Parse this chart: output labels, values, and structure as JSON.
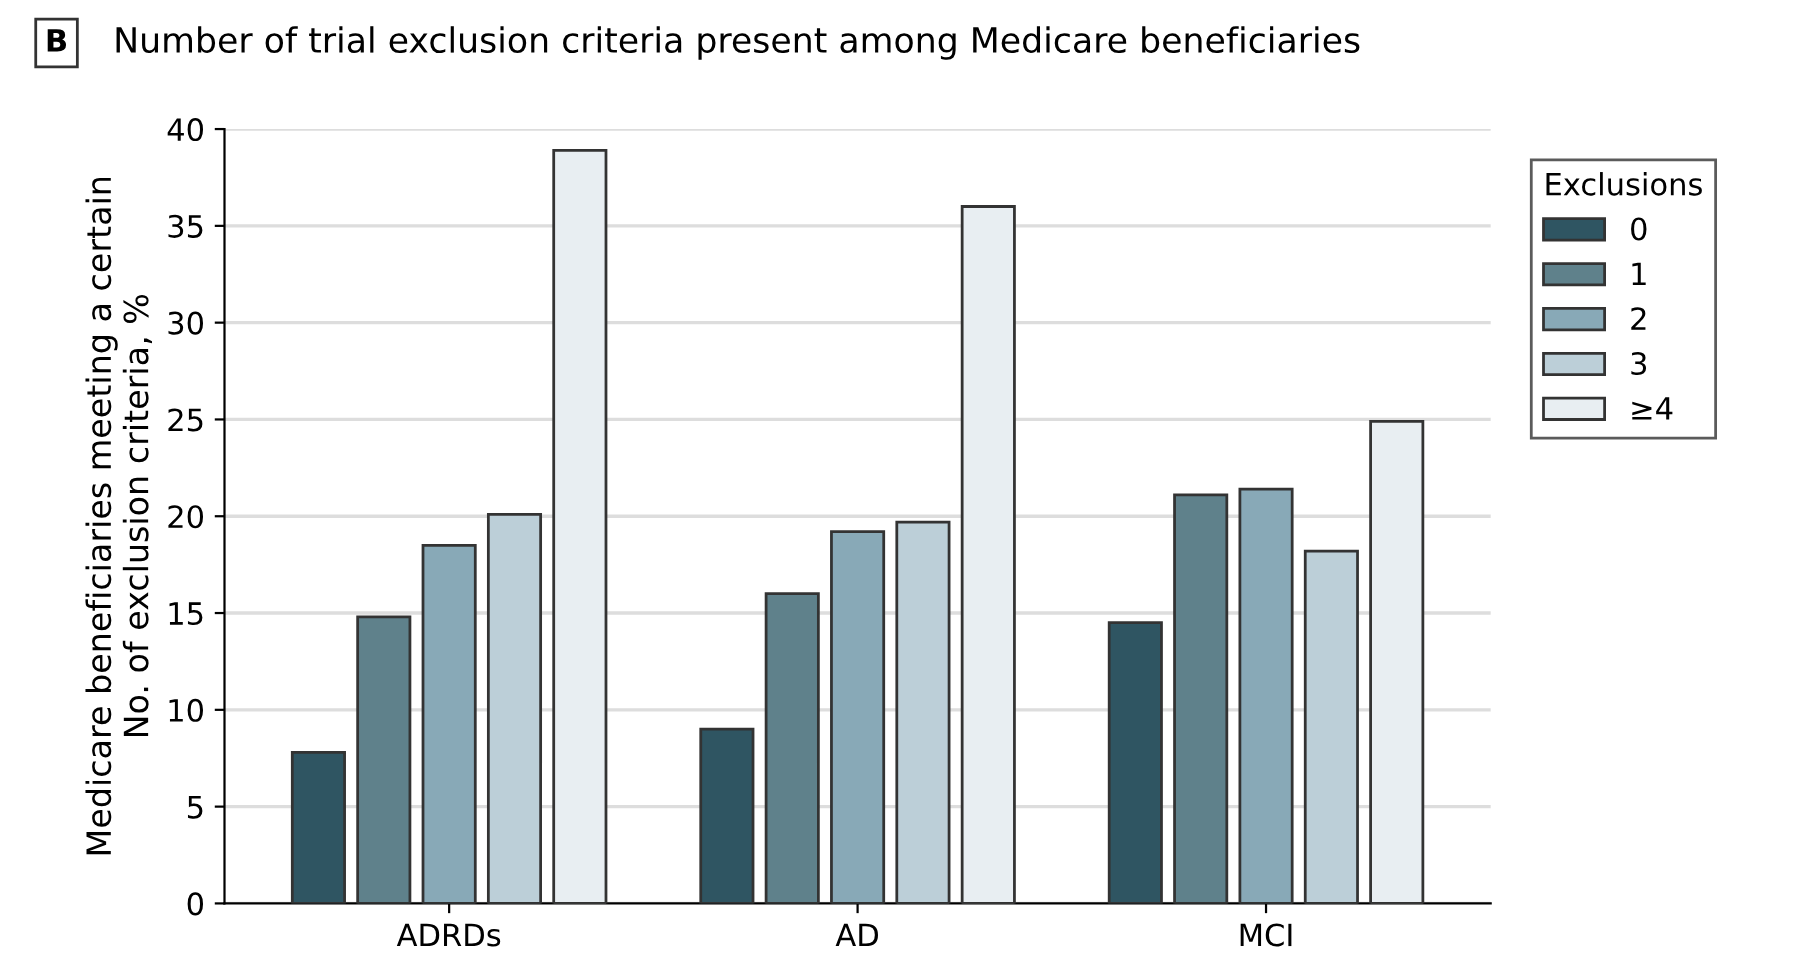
{
  "chart_data": {
    "type": "bar",
    "title": "Number of trial exclusion criteria present among Medicare beneficiaries",
    "annotations": [
      "B"
    ],
    "ylabel": "Medicare beneficiaries meeting a certain\nNo. of exclusion criteria, %",
    "legend_title": "Exclusions",
    "categories": [
      "ADRDs",
      "AD",
      "MCI"
    ],
    "series": [
      {
        "name": "0",
        "color": "#2f5562",
        "values": [
          7.8,
          9.0,
          14.5
        ]
      },
      {
        "name": "1",
        "color": "#5f818b",
        "values": [
          14.8,
          16.0,
          21.1
        ]
      },
      {
        "name": "2",
        "color": "#88a9b7",
        "values": [
          18.5,
          19.2,
          21.4
        ]
      },
      {
        "name": "3",
        "color": "#bccfd8",
        "values": [
          20.1,
          19.7,
          18.2
        ]
      },
      {
        "name": "≥4",
        "color": "#e8eef2",
        "values": [
          38.9,
          36.0,
          24.9
        ]
      }
    ],
    "ylim": [
      0,
      40
    ],
    "yticks": [
      0,
      5,
      10,
      15,
      20,
      25,
      30,
      35,
      40
    ],
    "grid": "y",
    "legend": "right"
  }
}
